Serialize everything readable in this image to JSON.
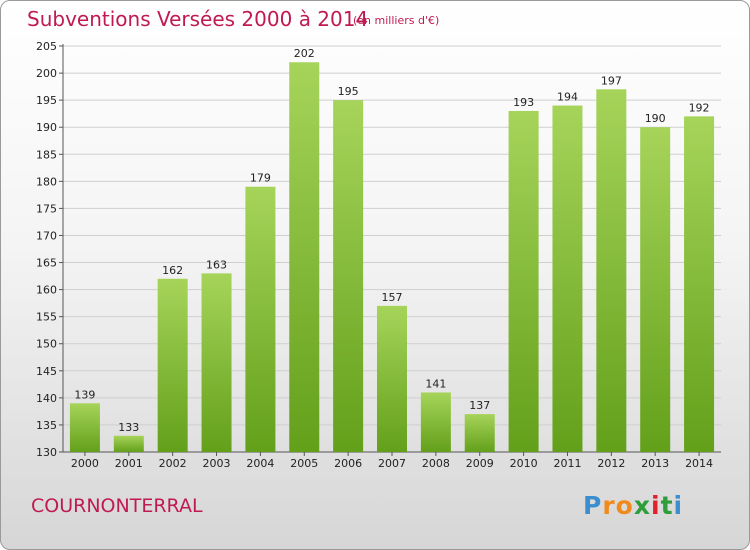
{
  "title": "Subventions Versées 2000 à 2014",
  "subtitle": "(en milliers d'€)",
  "commune": "COURNONTERRAL",
  "logo": {
    "letters": [
      "P",
      "r",
      "o",
      "x",
      "i",
      "t",
      "i"
    ],
    "colors": [
      "#3b8fd1",
      "#f08a1c",
      "#f08a1c",
      "#2f9e3a",
      "#e0202a",
      "#2f9e3a",
      "#3b8fd1"
    ]
  },
  "colors": {
    "bar_light": "#a6d45a",
    "bar_dark": "#63a01a",
    "text_accent": "#c01a53"
  },
  "chart_data": {
    "type": "bar",
    "title": "Subventions Versées 2000 à 2014",
    "ylabel": "en milliers d'€",
    "categories": [
      "2000",
      "2001",
      "2002",
      "2003",
      "2004",
      "2005",
      "2006",
      "2007",
      "2008",
      "2009",
      "2010",
      "2011",
      "2012",
      "2013",
      "2014"
    ],
    "values": [
      139,
      133,
      162,
      163,
      179,
      202,
      195,
      157,
      141,
      137,
      193,
      194,
      197,
      190,
      192
    ],
    "ylim": [
      130,
      205
    ],
    "yticks": [
      130,
      135,
      140,
      145,
      150,
      155,
      160,
      165,
      170,
      175,
      180,
      185,
      190,
      195,
      200,
      205
    ],
    "grid": true
  }
}
